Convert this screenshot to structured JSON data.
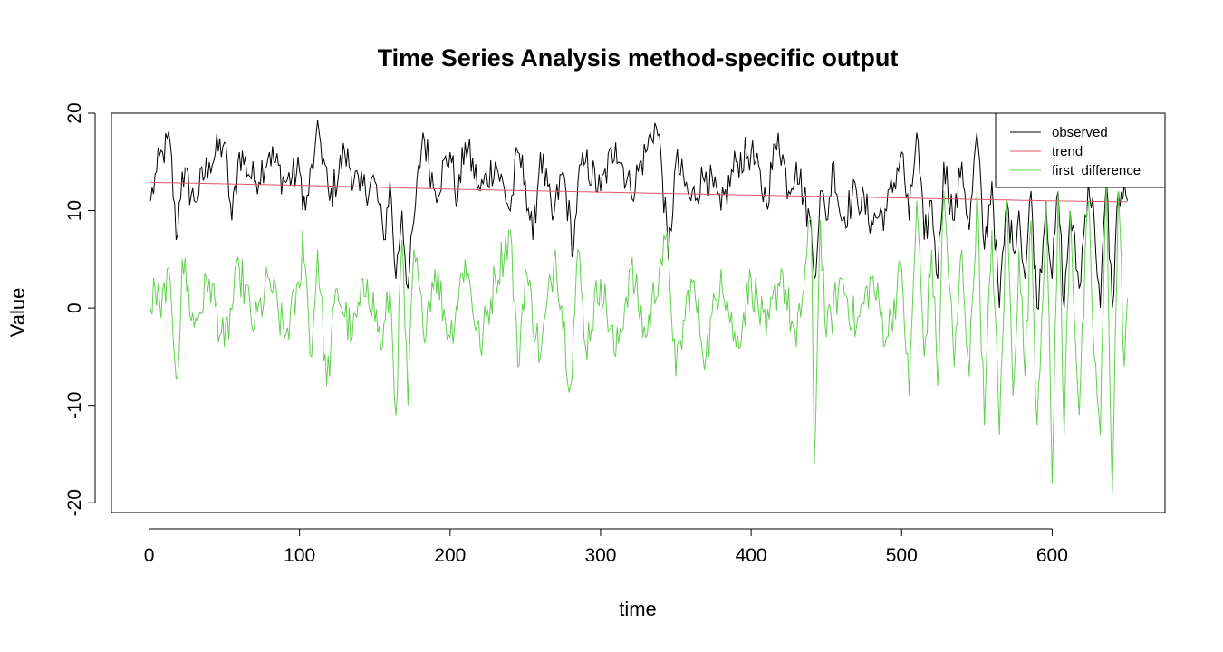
{
  "chart_data": {
    "type": "line",
    "title": "Time Series Analysis method-specific output",
    "xlabel": "time",
    "ylabel": "Value",
    "xlim": [
      -25,
      675
    ],
    "ylim": [
      -21,
      20
    ],
    "x_ticks": [
      0,
      100,
      200,
      300,
      400,
      500,
      600
    ],
    "y_ticks": [
      -20,
      -10,
      0,
      10,
      20
    ],
    "legend_position": "top-right",
    "n_points": 650,
    "series": [
      {
        "name": "observed",
        "color": "#000000",
        "points": [
          [
            1,
            11
          ],
          [
            5,
            14
          ],
          [
            9,
            16
          ],
          [
            14,
            17
          ],
          [
            18,
            7
          ],
          [
            22,
            14
          ],
          [
            30,
            11
          ],
          [
            40,
            15
          ],
          [
            50,
            17
          ],
          [
            55,
            9
          ],
          [
            60,
            16
          ],
          [
            70,
            13
          ],
          [
            80,
            16
          ],
          [
            90,
            13
          ],
          [
            100,
            14
          ],
          [
            104,
            10
          ],
          [
            110,
            16
          ],
          [
            113,
            18
          ],
          [
            120,
            11
          ],
          [
            130,
            16
          ],
          [
            140,
            12
          ],
          [
            150,
            13
          ],
          [
            156,
            7
          ],
          [
            160,
            13
          ],
          [
            164,
            3
          ],
          [
            168,
            10
          ],
          [
            172,
            2
          ],
          [
            176,
            9
          ],
          [
            182,
            18
          ],
          [
            190,
            12
          ],
          [
            200,
            16
          ],
          [
            205,
            11
          ],
          [
            210,
            17
          ],
          [
            220,
            12
          ],
          [
            230,
            15
          ],
          [
            240,
            10
          ],
          [
            245,
            16
          ],
          [
            250,
            13
          ],
          [
            255,
            7
          ],
          [
            260,
            16
          ],
          [
            268,
            9
          ],
          [
            275,
            14
          ],
          [
            282,
            6
          ],
          [
            285,
            13
          ],
          [
            290,
            15
          ],
          [
            300,
            12
          ],
          [
            310,
            17
          ],
          [
            320,
            12
          ],
          [
            330,
            16
          ],
          [
            336,
            19
          ],
          [
            340,
            16
          ],
          [
            345,
            5
          ],
          [
            350,
            15
          ],
          [
            360,
            11
          ],
          [
            370,
            14
          ],
          [
            380,
            10
          ],
          [
            390,
            15
          ],
          [
            400,
            16
          ],
          [
            410,
            11
          ],
          [
            418,
            18
          ],
          [
            425,
            12
          ],
          [
            430,
            15
          ],
          [
            440,
            8
          ],
          [
            442,
            3
          ],
          [
            446,
            12
          ],
          [
            450,
            9
          ],
          [
            455,
            15
          ],
          [
            460,
            9
          ],
          [
            470,
            12
          ],
          [
            480,
            9
          ],
          [
            490,
            10
          ],
          [
            500,
            16
          ],
          [
            505,
            9
          ],
          [
            510,
            18
          ],
          [
            515,
            7
          ],
          [
            520,
            11
          ],
          [
            524,
            3
          ],
          [
            528,
            15
          ],
          [
            535,
            9
          ],
          [
            540,
            15
          ],
          [
            545,
            8
          ],
          [
            550,
            18
          ],
          [
            555,
            6
          ],
          [
            560,
            13
          ],
          [
            565,
            0
          ],
          [
            570,
            11
          ],
          [
            574,
            6
          ],
          [
            578,
            10
          ],
          [
            582,
            3
          ],
          [
            586,
            12
          ],
          [
            590,
            0
          ],
          [
            596,
            11
          ],
          [
            600,
            3
          ],
          [
            604,
            12
          ],
          [
            608,
            0
          ],
          [
            612,
            10
          ],
          [
            618,
            2
          ],
          [
            624,
            13
          ],
          [
            628,
            9
          ],
          [
            632,
            0
          ],
          [
            636,
            13
          ],
          [
            640,
            0
          ],
          [
            644,
            12
          ],
          [
            650,
            11
          ]
        ]
      },
      {
        "name": "trend",
        "color": "#DF536B",
        "points": [
          [
            1,
            12.9
          ],
          [
            100,
            12.6
          ],
          [
            200,
            12.2
          ],
          [
            300,
            11.9
          ],
          [
            400,
            11.6
          ],
          [
            500,
            11.3
          ],
          [
            600,
            11.0
          ],
          [
            650,
            10.9
          ]
        ]
      },
      {
        "name": "first_difference",
        "color": "#61D04F",
        "points": [
          [
            1,
            0
          ],
          [
            4,
            2
          ],
          [
            8,
            -1
          ],
          [
            12,
            4
          ],
          [
            16,
            -3
          ],
          [
            19,
            -7
          ],
          [
            22,
            5
          ],
          [
            30,
            -2
          ],
          [
            40,
            3
          ],
          [
            50,
            -4
          ],
          [
            60,
            4
          ],
          [
            70,
            -2
          ],
          [
            80,
            3
          ],
          [
            90,
            -3
          ],
          [
            100,
            2
          ],
          [
            102,
            8
          ],
          [
            108,
            -5
          ],
          [
            112,
            6
          ],
          [
            118,
            -8
          ],
          [
            125,
            2
          ],
          [
            135,
            -3
          ],
          [
            145,
            3
          ],
          [
            155,
            -4
          ],
          [
            160,
            2
          ],
          [
            164,
            -11
          ],
          [
            168,
            7
          ],
          [
            172,
            -10
          ],
          [
            176,
            6
          ],
          [
            182,
            -2
          ],
          [
            190,
            4
          ],
          [
            200,
            -3
          ],
          [
            210,
            5
          ],
          [
            220,
            -4
          ],
          [
            230,
            3
          ],
          [
            240,
            8
          ],
          [
            245,
            -6
          ],
          [
            250,
            4
          ],
          [
            260,
            -5
          ],
          [
            270,
            6
          ],
          [
            280,
            -8
          ],
          [
            285,
            6
          ],
          [
            290,
            -4
          ],
          [
            300,
            3
          ],
          [
            310,
            -5
          ],
          [
            320,
            4
          ],
          [
            330,
            -3
          ],
          [
            340,
            5
          ],
          [
            345,
            6
          ],
          [
            350,
            -7
          ],
          [
            360,
            3
          ],
          [
            370,
            -5
          ],
          [
            380,
            4
          ],
          [
            390,
            -4
          ],
          [
            400,
            3
          ],
          [
            410,
            -3
          ],
          [
            420,
            4
          ],
          [
            430,
            -4
          ],
          [
            440,
            9
          ],
          [
            442,
            -16
          ],
          [
            446,
            9
          ],
          [
            450,
            -3
          ],
          [
            460,
            3
          ],
          [
            470,
            -2
          ],
          [
            480,
            3
          ],
          [
            490,
            -3
          ],
          [
            500,
            4
          ],
          [
            505,
            -9
          ],
          [
            510,
            11
          ],
          [
            515,
            -5
          ],
          [
            520,
            6
          ],
          [
            524,
            -8
          ],
          [
            528,
            12
          ],
          [
            535,
            -6
          ],
          [
            540,
            6
          ],
          [
            545,
            -7
          ],
          [
            550,
            12
          ],
          [
            555,
            -12
          ],
          [
            560,
            8
          ],
          [
            565,
            -13
          ],
          [
            570,
            11
          ],
          [
            574,
            -9
          ],
          [
            578,
            6
          ],
          [
            582,
            -7
          ],
          [
            586,
            9
          ],
          [
            590,
            -12
          ],
          [
            596,
            11
          ],
          [
            600,
            -18
          ],
          [
            604,
            12
          ],
          [
            608,
            -13
          ],
          [
            612,
            10
          ],
          [
            618,
            -11
          ],
          [
            624,
            11
          ],
          [
            628,
            -5
          ],
          [
            632,
            -13
          ],
          [
            636,
            13
          ],
          [
            640,
            -19
          ],
          [
            644,
            12
          ],
          [
            648,
            -6
          ],
          [
            650,
            1
          ]
        ]
      }
    ]
  }
}
